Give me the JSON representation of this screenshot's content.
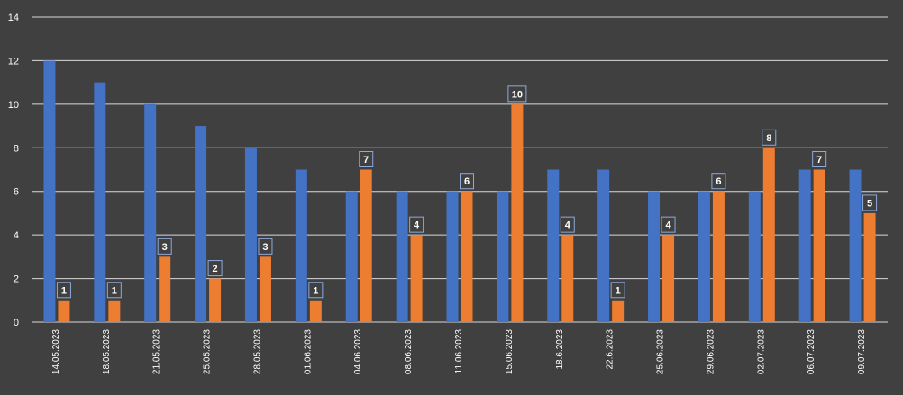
{
  "chart_data": {
    "type": "bar",
    "categories": [
      "14.05.2023",
      "18.05.2023",
      "21.05.2023",
      "25.05.2023",
      "28.05.2023",
      "01.06.2023",
      "04.06.2023",
      "08.06.2023",
      "11.06.2023",
      "15.06.2023",
      "18.6.2023",
      "22.6.2023",
      "25.06.2023",
      "29.06.2023",
      "02.07.2023",
      "06.07.2023",
      "09.07.2023"
    ],
    "series": [
      {
        "values": [
          12,
          11,
          10,
          9,
          8,
          7,
          6,
          6,
          6,
          6,
          7,
          7,
          6,
          6,
          6,
          7,
          7
        ],
        "color": "#4472C4",
        "data_labels": false
      },
      {
        "values": [
          1,
          1,
          3,
          2,
          3,
          1,
          7,
          4,
          6,
          10,
          4,
          1,
          4,
          6,
          8,
          7,
          5
        ],
        "color": "#ED7D31",
        "data_labels": true
      }
    ],
    "ylim": [
      0,
      14
    ],
    "yticks": [
      0,
      2,
      4,
      6,
      8,
      10,
      12,
      14
    ],
    "grid": true,
    "legend": "none",
    "background": "#404040",
    "gridline_color": "#D9D9D9",
    "text_color": "#FFFFFF"
  }
}
